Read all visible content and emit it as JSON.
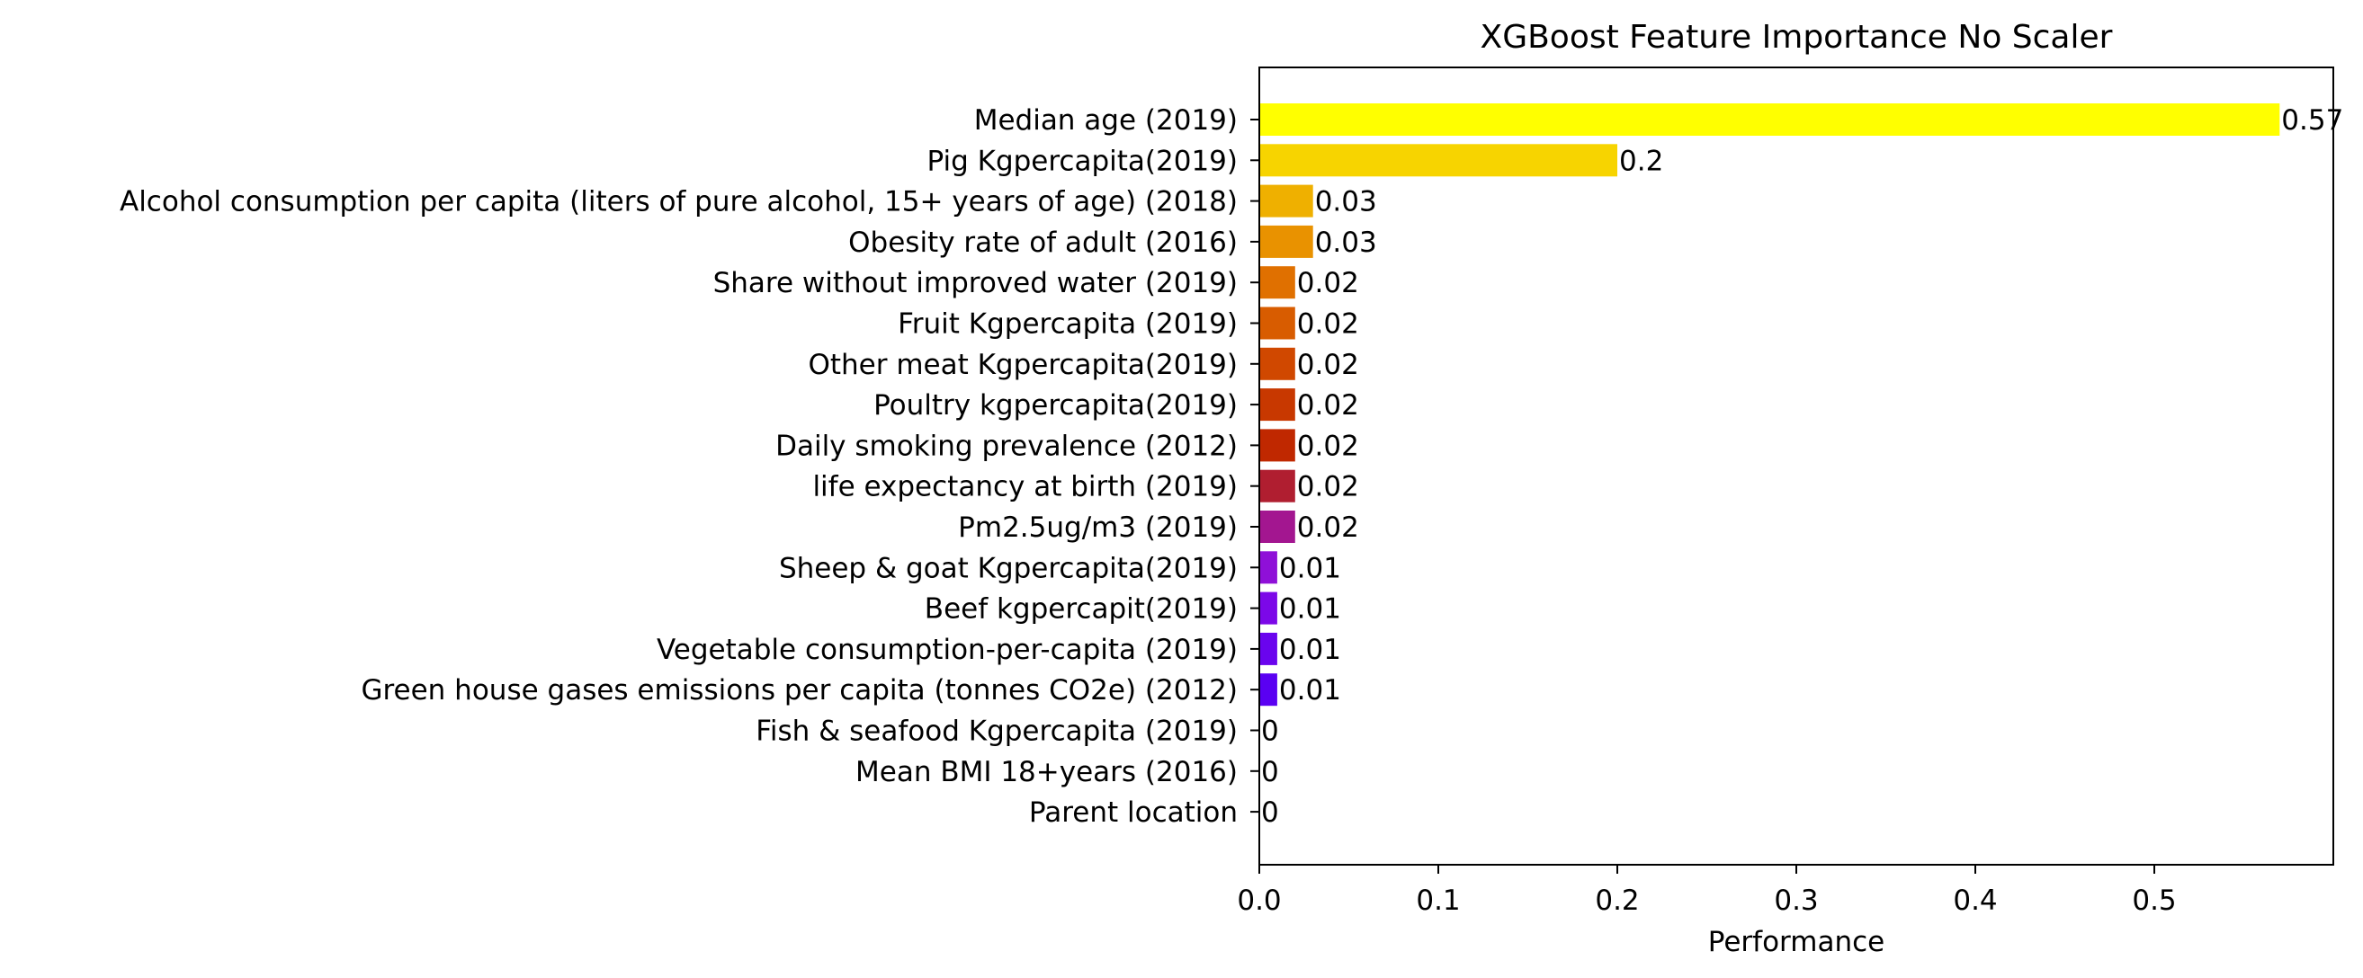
{
  "chart_data": {
    "type": "bar",
    "orientation": "horizontal",
    "title": "XGBoost Feature Importance No Scaler",
    "xlabel": "Performance",
    "ylabel": "",
    "xlim": [
      0,
      0.6
    ],
    "xticks": [
      0.0,
      0.1,
      0.2,
      0.3,
      0.4,
      0.5
    ],
    "xtick_labels": [
      "0.0",
      "0.1",
      "0.2",
      "0.3",
      "0.4",
      "0.5"
    ],
    "grid": false,
    "legend": "none",
    "categories": [
      "Median age (2019)",
      "Pig Kgpercapita(2019)",
      "Alcohol consumption per capita (liters of pure alcohol, 15+ years of age) (2018)",
      "Obesity rate of adult (2016)",
      "Share without improved water (2019)",
      "Fruit Kgpercapita (2019)",
      "Other meat Kgpercapita(2019)",
      "Poultry kgpercapita(2019)",
      "Daily smoking prevalence (2012)",
      "life expectancy at birth (2019)",
      "Pm2.5ug/m3 (2019)",
      "Sheep & goat Kgpercapita(2019)",
      "Beef kgpercapit(2019)",
      "Vegetable consumption-per-capita (2019)",
      "Green house gases emissions per capita (tonnes CO2e) (2012)",
      "Fish & seafood Kgpercapita (2019)",
      "Mean BMI 18+years (2016)",
      "Parent location"
    ],
    "values": [
      0.57,
      0.2,
      0.03,
      0.03,
      0.02,
      0.02,
      0.02,
      0.02,
      0.02,
      0.02,
      0.02,
      0.01,
      0.01,
      0.01,
      0.01,
      0,
      0,
      0
    ],
    "value_labels": [
      "0.57",
      "0.2",
      "0.03",
      "0.03",
      "0.02",
      "0.02",
      "0.02",
      "0.02",
      "0.02",
      "0.02",
      "0.02",
      "0.01",
      "0.01",
      "0.01",
      "0.01",
      "0",
      "0",
      "0"
    ],
    "colors": [
      "#ffff00",
      "#f7d400",
      "#efb000",
      "#e99200",
      "#e07000",
      "#d85c00",
      "#d04800",
      "#c83800",
      "#c02800",
      "#b01e30",
      "#a31690",
      "#8f10d8",
      "#7c08e8",
      "#6a04ee",
      "#5a00f2",
      "#4c00f4",
      "#3f00f6",
      "#3300f8"
    ]
  }
}
